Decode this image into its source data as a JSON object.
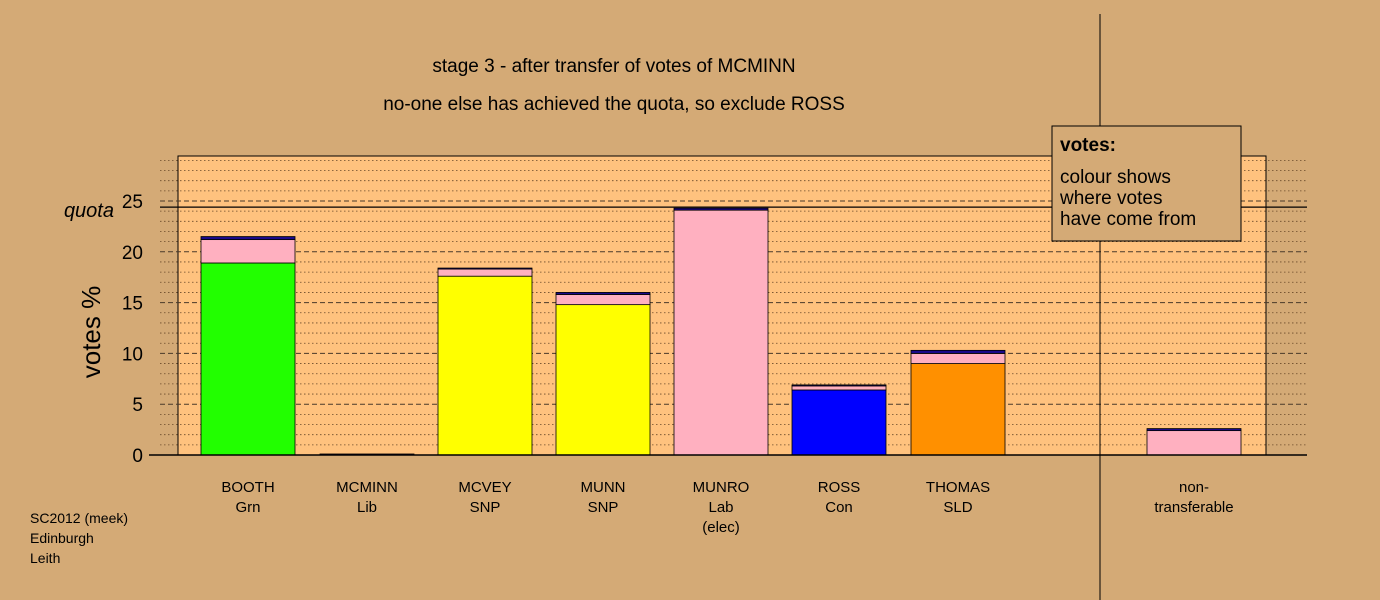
{
  "chart_data": {
    "type": "bar",
    "title": "stage 3 - after transfer of votes of MCMINN",
    "subtitle": "no-one else has achieved the quota, so exclude ROSS",
    "ylabel": "votes %",
    "ylim": [
      0,
      29.5
    ],
    "yticks": [
      0,
      5,
      10,
      15,
      20,
      25
    ],
    "quota": 24.4,
    "quota_label": "quota",
    "legend": {
      "title": "votes:",
      "lines": [
        "colour shows",
        "where votes",
        "have come from"
      ],
      "placement": "top-right"
    },
    "categories": [
      [
        "BOOTH",
        "Grn"
      ],
      [
        "MCMINN",
        "Lib"
      ],
      [
        "MCVEY",
        "SNP"
      ],
      [
        "MUNN",
        "SNP"
      ],
      [
        "MUNRO",
        "Lab",
        "(elec)"
      ],
      [
        "ROSS",
        "Con"
      ],
      [
        "THOMAS",
        "SLD"
      ],
      [
        "non-",
        "transferable"
      ]
    ],
    "series": [
      {
        "color": "#22ff00",
        "values": [
          18.9,
          0,
          0,
          0,
          0,
          0,
          0,
          0
        ]
      },
      {
        "color": "#ffff00",
        "values": [
          0,
          0,
          17.6,
          14.8,
          0,
          0,
          0,
          0
        ]
      },
      {
        "color": "#ffb0c0",
        "values": [
          0,
          0,
          0,
          0,
          24.1,
          0,
          0,
          0
        ]
      },
      {
        "color": "#0000ff",
        "values": [
          0,
          0,
          0,
          0,
          0,
          6.4,
          0,
          0
        ]
      },
      {
        "color": "#ff9000",
        "values": [
          0,
          0,
          0,
          0,
          0,
          0,
          9.0,
          0
        ]
      },
      {
        "color": "#ffb0c0",
        "values": [
          2.3,
          0,
          0.7,
          1.0,
          0,
          0.4,
          1.0,
          2.4
        ]
      },
      {
        "color": "#1a0a8a",
        "values": [
          0.3,
          0.1,
          0.1,
          0.2,
          0.2,
          0.1,
          0.3,
          0.2
        ]
      }
    ],
    "grid": true
  },
  "footer": {
    "lines": [
      "SC2012 (meek)",
      "Edinburgh",
      "Leith"
    ]
  }
}
